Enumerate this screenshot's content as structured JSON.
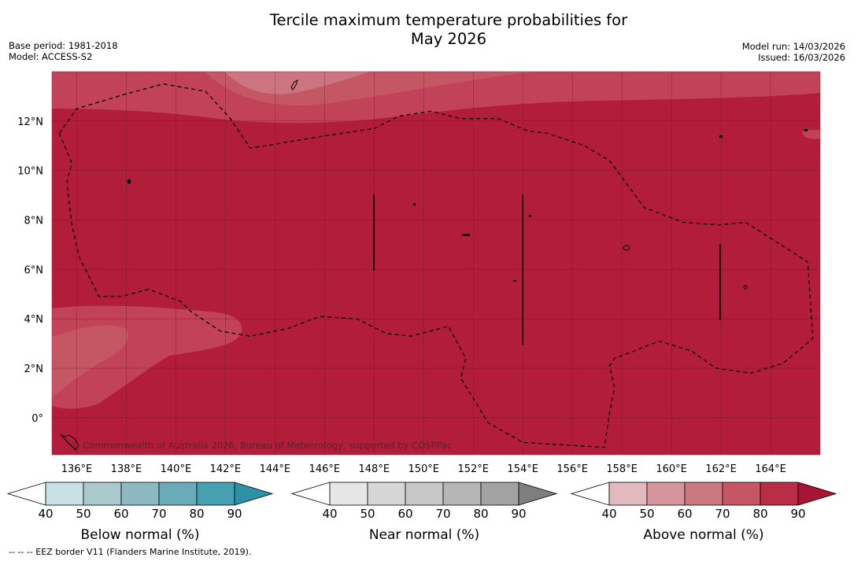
{
  "header": {
    "title_line1": "Tercile maximum temperature probabilities for",
    "title_line2": "May 2026",
    "base_period": "Base period: 1981-2018",
    "model": "Model: ACCESS-S2",
    "model_run": "Model run: 14/03/2026",
    "issued": "Issued: 16/03/2026"
  },
  "map": {
    "copyright": "© Commonwealth of Australia 2026, Bureau of Meteorology, supported by COSPPac"
  },
  "chart_data": {
    "type": "heatmap",
    "title": "Tercile maximum temperature probabilities for May 2026",
    "x_axis": {
      "lon_range": [
        135,
        166
      ],
      "ticks": [
        136,
        138,
        140,
        142,
        144,
        146,
        148,
        150,
        152,
        154,
        156,
        158,
        160,
        162,
        164
      ],
      "tick_labels": [
        "136°E",
        "138°E",
        "140°E",
        "142°E",
        "144°E",
        "146°E",
        "148°E",
        "150°E",
        "152°E",
        "154°E",
        "156°E",
        "158°E",
        "160°E",
        "162°E",
        "164°E"
      ]
    },
    "y_axis": {
      "lat_range": [
        -1.5,
        14
      ],
      "ticks": [
        0,
        2,
        4,
        6,
        8,
        10,
        12
      ],
      "tick_labels": [
        "0°",
        "2°N",
        "4°N",
        "6°N",
        "8°N",
        "10°N",
        "12°N"
      ]
    },
    "dominant_category": "Above normal",
    "dominant_probability_bin": "80-90",
    "eez_border": [
      [
        135.3,
        11.5
      ],
      [
        136,
        12.5
      ],
      [
        138,
        13.1
      ],
      [
        139.5,
        13.5
      ],
      [
        141.2,
        13.2
      ],
      [
        142.2,
        12.1
      ],
      [
        143,
        10.9
      ],
      [
        146,
        11.4
      ],
      [
        148,
        11.7
      ],
      [
        149,
        12.2
      ],
      [
        150.3,
        12.4
      ],
      [
        151.5,
        12.1
      ],
      [
        153,
        12.1
      ],
      [
        154.2,
        11.6
      ],
      [
        155,
        11.5
      ],
      [
        156.5,
        11
      ],
      [
        157.5,
        10.4
      ],
      [
        158.9,
        8.5
      ],
      [
        160.5,
        7.9
      ],
      [
        161.9,
        7.8
      ],
      [
        163,
        7.9
      ],
      [
        165.5,
        6.3
      ],
      [
        165.7,
        3.2
      ],
      [
        164.5,
        2.2
      ],
      [
        163.2,
        1.8
      ],
      [
        161.8,
        2
      ],
      [
        160.8,
        2.7
      ],
      [
        159.5,
        3.1
      ],
      [
        158.5,
        2.7
      ],
      [
        157.7,
        2.4
      ],
      [
        157.5,
        2.1
      ],
      [
        157.7,
        1.2
      ],
      [
        157.5,
        0.2
      ],
      [
        157.3,
        -1.2
      ],
      [
        154,
        -1
      ],
      [
        152.6,
        -0.2
      ],
      [
        151.5,
        1.6
      ],
      [
        151.7,
        2.4
      ],
      [
        151,
        3.7
      ],
      [
        149.5,
        3.3
      ],
      [
        148.5,
        3.4
      ],
      [
        147.3,
        4
      ],
      [
        145.8,
        4.1
      ],
      [
        144.5,
        3.6
      ],
      [
        143,
        3.3
      ],
      [
        141.8,
        3.5
      ],
      [
        140.6,
        4.3
      ],
      [
        140.2,
        4.7
      ],
      [
        138.9,
        5.2
      ],
      [
        137.8,
        4.9
      ],
      [
        136.9,
        4.9
      ],
      [
        136.1,
        6.5
      ],
      [
        135.8,
        7.8
      ],
      [
        135.6,
        9.5
      ],
      [
        135.8,
        10.3
      ],
      [
        135.3,
        11.5
      ]
    ],
    "colorbars": [
      {
        "label": "Below normal (%)",
        "tick_labels": [
          "40",
          "50",
          "60",
          "70",
          "80",
          "90"
        ],
        "colors": [
          "#ffffff",
          "#c8e1e8",
          "#a9c9cf",
          "#8cb8c2",
          "#6aabb9",
          "#47a0b1",
          "#2e92a6"
        ]
      },
      {
        "label": "Near normal (%)",
        "tick_labels": [
          "40",
          "50",
          "60",
          "70",
          "80",
          "90"
        ],
        "colors": [
          "#ffffff",
          "#e6e6e6",
          "#d6d6d6",
          "#c8c8c8",
          "#b6b6b6",
          "#a2a2a2",
          "#7e7e7e"
        ]
      },
      {
        "label": "Above normal (%)",
        "tick_labels": [
          "40",
          "50",
          "60",
          "70",
          "80",
          "90"
        ],
        "colors": [
          "#ffffff",
          "#e2b9bf",
          "#d5959c",
          "#cc7880",
          "#c55764",
          "#b92e46",
          "#a81434"
        ]
      }
    ]
  },
  "footer": {
    "eez_note": "--  --  -- EEZ border V11 (Flanders Marine Institute, 2019)."
  }
}
